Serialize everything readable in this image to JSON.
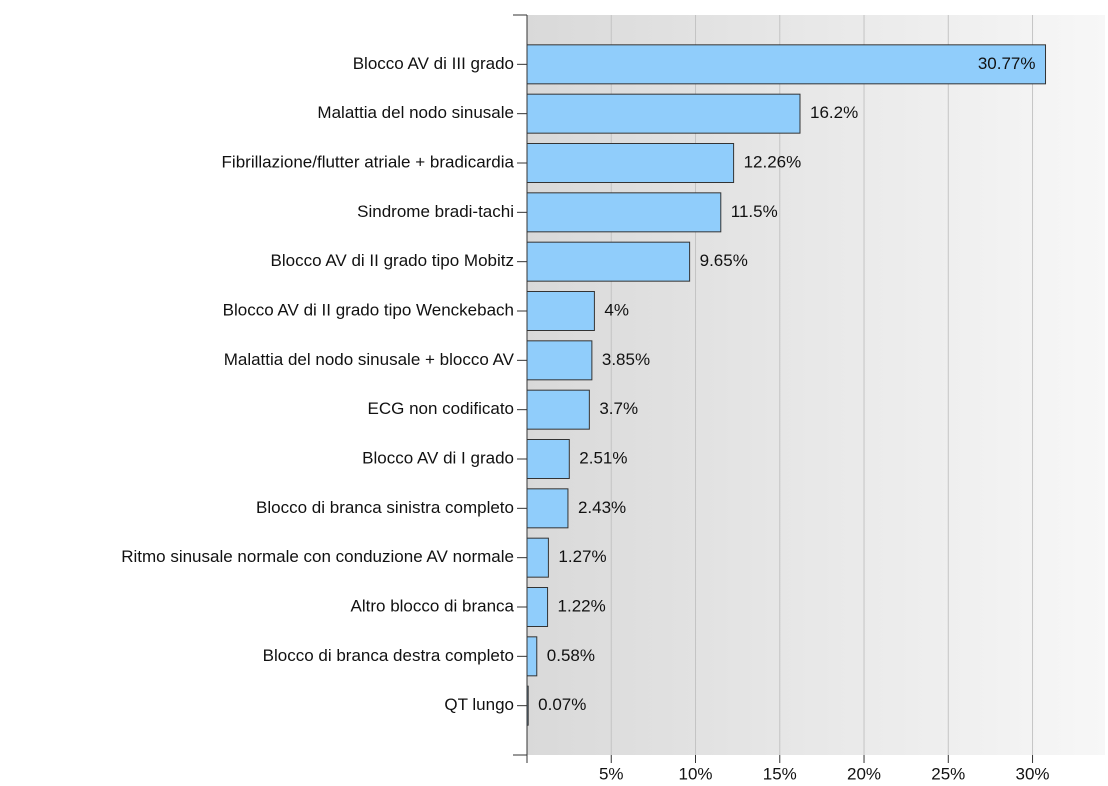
{
  "chart_data": {
    "type": "barh",
    "categories": [
      "Blocco AV di III grado",
      "Malattia del nodo sinusale",
      "Fibrillazione/flutter atriale + bradicardia",
      "Sindrome bradi-tachi",
      "Blocco AV di II grado tipo Mobitz",
      "Blocco AV di II grado tipo Wenckebach",
      "Malattia del nodo sinusale + blocco AV",
      "ECG non codificato",
      "Blocco AV di I grado",
      "Blocco di branca sinistra completo",
      "Ritmo sinusale normale con conduzione AV normale",
      "Altro blocco di branca",
      "Blocco di branca destra completo",
      "QT lungo"
    ],
    "values": [
      30.77,
      16.2,
      12.26,
      11.5,
      9.65,
      4,
      3.85,
      3.7,
      2.51,
      2.43,
      1.27,
      1.22,
      0.58,
      0.07
    ],
    "value_labels": [
      "30.77%",
      "16.2%",
      "12.26%",
      "11.5%",
      "9.65%",
      "4%",
      "3.85%",
      "3.7%",
      "2.51%",
      "2.43%",
      "1.27%",
      "1.22%",
      "0.58%",
      "0.07%"
    ],
    "color": "#90cdfb",
    "xlim": [
      0,
      34.3
    ],
    "xticks": [
      {
        "value": 5,
        "label": "5%"
      },
      {
        "value": 10,
        "label": "10%"
      },
      {
        "value": 15,
        "label": "15%"
      },
      {
        "value": 20,
        "label": "20%"
      },
      {
        "value": 25,
        "label": "25%"
      },
      {
        "value": 30,
        "label": "30%"
      }
    ],
    "grid": true
  }
}
